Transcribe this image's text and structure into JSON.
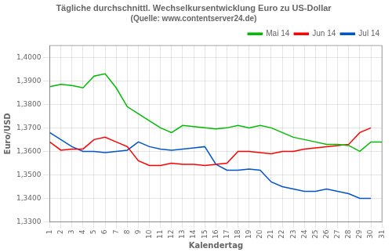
{
  "chart_data": {
    "type": "line",
    "title": "Tägliche durchschnittl. Wechselkursentwicklung Euro zu US-Dollar",
    "subtitle": "(Quelle: www.contentserver24.de)",
    "x_label": "Kalendertag",
    "y_label": "Euro/USD",
    "x": [
      1,
      2,
      3,
      4,
      5,
      6,
      7,
      8,
      9,
      10,
      11,
      12,
      13,
      14,
      15,
      16,
      17,
      18,
      19,
      20,
      21,
      22,
      23,
      24,
      25,
      26,
      27,
      28,
      29,
      30,
      31
    ],
    "xlim": [
      1,
      31
    ],
    "xticks": [
      1,
      2,
      3,
      4,
      5,
      6,
      7,
      8,
      9,
      10,
      11,
      12,
      13,
      14,
      15,
      16,
      17,
      18,
      19,
      20,
      21,
      22,
      23,
      24,
      25,
      26,
      27,
      28,
      29,
      30,
      31
    ],
    "ylim": [
      1.33,
      1.405
    ],
    "yticks": [
      {
        "value": 1.33,
        "label": "1,3300"
      },
      {
        "value": 1.34,
        "label": "1,3400"
      },
      {
        "value": 1.35,
        "label": "1,3500"
      },
      {
        "value": 1.36,
        "label": "1,3600"
      },
      {
        "value": 1.37,
        "label": "1,3700"
      },
      {
        "value": 1.38,
        "label": "1,3800"
      },
      {
        "value": 1.39,
        "label": "1,3900"
      },
      {
        "value": 1.4,
        "label": "1,4000"
      }
    ],
    "grid": true,
    "legend": "upper right",
    "series": [
      {
        "name": "Mai 14",
        "color": "#00BB00",
        "values": [
          1.3875,
          1.3885,
          1.388,
          1.387,
          1.392,
          1.393,
          1.387,
          1.379,
          1.376,
          1.373,
          1.37,
          1.368,
          1.371,
          1.3705,
          1.37,
          1.3695,
          1.37,
          1.371,
          1.37,
          1.371,
          1.37,
          1.368,
          1.366,
          1.365,
          1.364,
          1.363,
          1.363,
          1.3625,
          1.36,
          1.364,
          1.364
        ]
      },
      {
        "name": "Jun 14",
        "color": "#FF0000",
        "values": [
          1.364,
          1.3605,
          1.361,
          1.361,
          1.365,
          1.366,
          1.364,
          1.362,
          1.356,
          1.354,
          1.354,
          1.355,
          1.3545,
          1.3545,
          1.354,
          1.3545,
          1.355,
          1.36,
          1.36,
          1.3595,
          1.359,
          1.36,
          1.36,
          1.361,
          1.3615,
          1.362,
          1.3625,
          1.363,
          1.368,
          1.37,
          null
        ]
      },
      {
        "name": "Jul 14",
        "color": "#0055CC",
        "values": [
          1.368,
          1.365,
          1.362,
          1.36,
          1.36,
          1.3595,
          1.36,
          1.3605,
          1.364,
          1.362,
          1.361,
          1.3605,
          1.361,
          1.3615,
          1.362,
          1.3545,
          1.352,
          1.352,
          1.3525,
          1.352,
          1.347,
          1.345,
          1.344,
          1.343,
          1.343,
          1.344,
          1.343,
          1.342,
          1.34,
          1.34,
          null
        ]
      }
    ]
  }
}
